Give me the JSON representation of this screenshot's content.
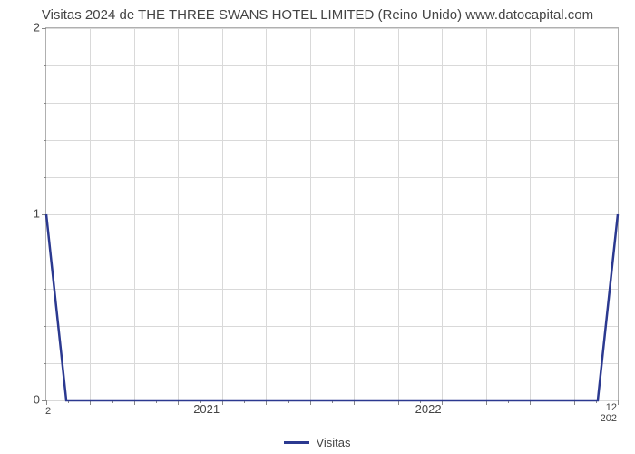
{
  "title": "Visitas 2024 de THE THREE SWANS HOTEL LIMITED (Reino Unido) www.datocapital.com",
  "chart": {
    "type": "line",
    "series_name": "Visitas",
    "line_color": "#2b3990",
    "line_width": 2.5,
    "background_color": "#ffffff",
    "grid_color": "#d9d9d9",
    "border_color": "#b0b0b0",
    "text_color": "#444444",
    "y_axis": {
      "min": 0,
      "max": 2,
      "major_ticks": [
        0,
        1,
        2
      ],
      "minor_tick_count": 4
    },
    "x_axis": {
      "major_labels": [
        "2021",
        "2022"
      ],
      "major_positions": [
        0.282,
        0.67
      ],
      "left_small_label": "2",
      "right_small_top": "12",
      "right_small_bottom": "202",
      "vline_count": 13,
      "minor_tick_count": 26
    },
    "data_points": [
      {
        "x": 0.0,
        "y": 1.0
      },
      {
        "x": 0.035,
        "y": 0.0
      },
      {
        "x": 0.965,
        "y": 0.0
      },
      {
        "x": 1.0,
        "y": 1.0
      }
    ]
  },
  "legend": {
    "label": "Visitas"
  }
}
